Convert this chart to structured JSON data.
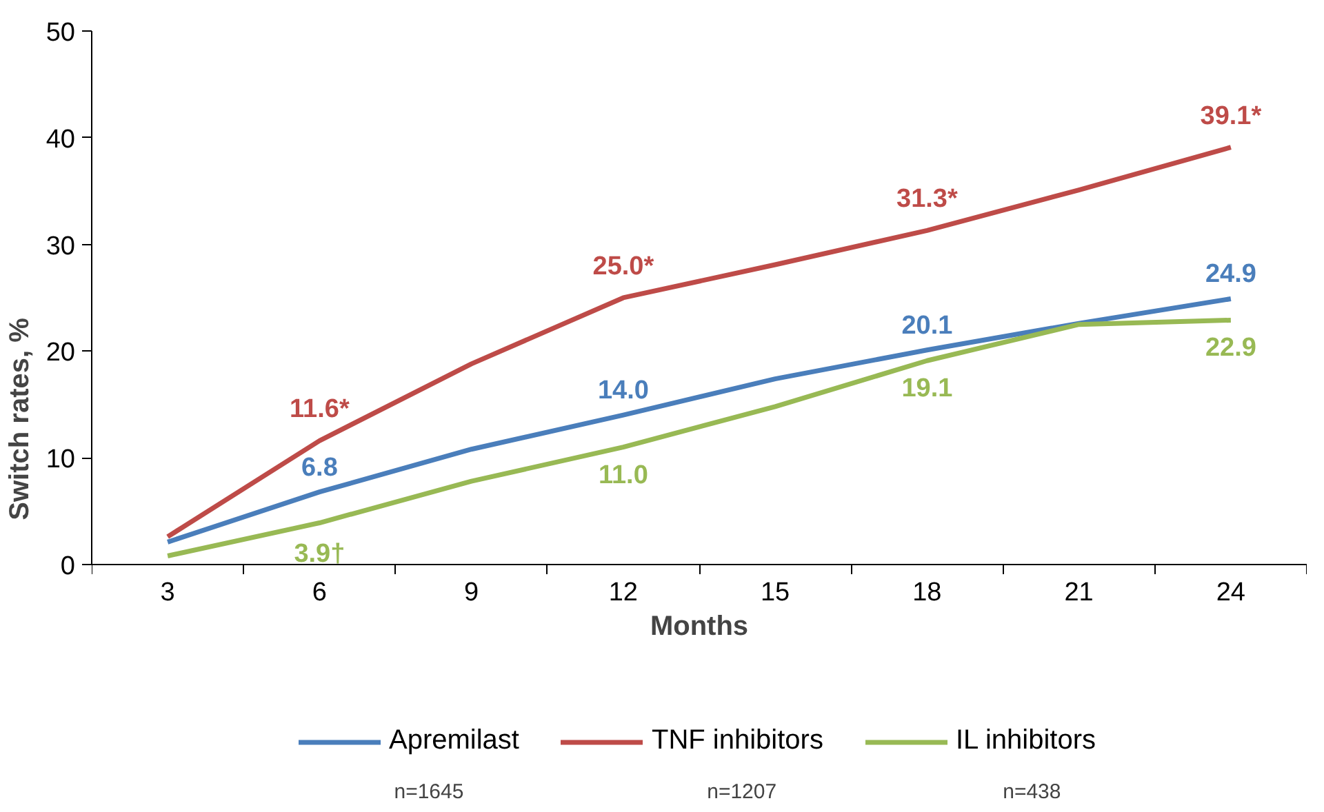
{
  "chart_data": {
    "type": "line",
    "xlabel": "Months",
    "ylabel": "Switch rates, %",
    "categories": [
      "3",
      "6",
      "9",
      "12",
      "15",
      "18",
      "21",
      "24"
    ],
    "ylim": [
      0,
      50
    ],
    "yticks": [
      0,
      10,
      20,
      30,
      40,
      50
    ],
    "grid": false,
    "legend": "bottom",
    "marker": "none",
    "line_style": "solid",
    "series": [
      {
        "name": "Apremilast",
        "color": "#4a7ebb",
        "values": [
          2.1,
          6.8,
          10.8,
          14.0,
          17.4,
          20.1,
          22.6,
          24.9
        ],
        "value_labels": [
          null,
          "6.8",
          null,
          "14.0",
          null,
          "20.1",
          null,
          "24.9"
        ]
      },
      {
        "name": "TNF inhibitors",
        "color": "#be4b48",
        "values": [
          2.6,
          11.6,
          18.8,
          25.0,
          28.1,
          31.3,
          35.1,
          39.1
        ],
        "value_labels": [
          null,
          "11.6*",
          null,
          "25.0*",
          null,
          "31.3*",
          null,
          "39.1*"
        ]
      },
      {
        "name": "IL inhibitors",
        "color": "#98b954",
        "values": [
          0.8,
          3.9,
          7.8,
          11.0,
          14.8,
          19.1,
          22.5,
          22.9
        ],
        "value_labels": [
          null,
          "3.9†",
          null,
          "11.0",
          null,
          "19.1",
          null,
          "22.9"
        ]
      }
    ],
    "annotations": [
      "n=1645",
      "n=1207",
      "n=438"
    ]
  }
}
